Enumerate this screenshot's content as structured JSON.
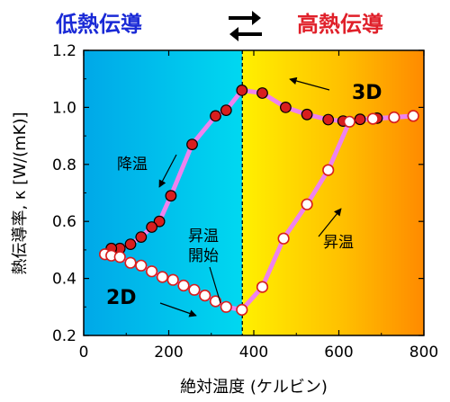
{
  "header": {
    "low_label": "低熱伝導",
    "high_label": "高熱伝導",
    "low_color": "#1a2ad6",
    "high_color": "#e0202a"
  },
  "chart_data": {
    "type": "scatter",
    "xlabel": "絶対温度 (ケルビン)",
    "ylabel": "熱伝導率, κ [W/(mK)]",
    "xlim": [
      0,
      800
    ],
    "ylim": [
      0.2,
      1.2
    ],
    "x_ticks": [
      0,
      200,
      400,
      600,
      800
    ],
    "y_ticks": [
      0.2,
      0.4,
      0.6,
      0.8,
      1.0,
      1.2
    ],
    "transition_x": 373,
    "series": [
      {
        "name": "",
        "direction": "cooling",
        "marker": "filled",
        "x": [
          775,
          730,
          690,
          650,
          610,
          575,
          525,
          475,
          420,
          372,
          335,
          310,
          255,
          205,
          178,
          160,
          135,
          110,
          85,
          65,
          50
        ],
        "y": [
          0.97,
          0.965,
          0.962,
          0.958,
          0.952,
          0.957,
          0.975,
          1.0,
          1.05,
          1.06,
          0.99,
          0.97,
          0.87,
          0.69,
          0.6,
          0.58,
          0.545,
          0.52,
          0.505,
          0.505,
          0.485
        ]
      },
      {
        "name": "",
        "direction": "heating",
        "marker": "open",
        "x": [
          50,
          65,
          85,
          110,
          135,
          160,
          185,
          210,
          235,
          260,
          285,
          310,
          335,
          372,
          420,
          470,
          525,
          575,
          625,
          680,
          730,
          775
        ],
        "y": [
          0.485,
          0.48,
          0.475,
          0.455,
          0.445,
          0.425,
          0.405,
          0.395,
          0.375,
          0.36,
          0.34,
          0.32,
          0.3,
          0.29,
          0.37,
          0.54,
          0.66,
          0.78,
          0.95,
          0.96,
          0.965,
          0.97
        ]
      }
    ],
    "curve_color": "#ee82ee",
    "marker_fill": "#d81e1e",
    "annotations": {
      "phase_3d": "3D",
      "phase_2d": "2D",
      "cooling": "降温",
      "heating": "昇温",
      "heating_start_line1": "昇温",
      "heating_start_line2": "開始"
    }
  }
}
